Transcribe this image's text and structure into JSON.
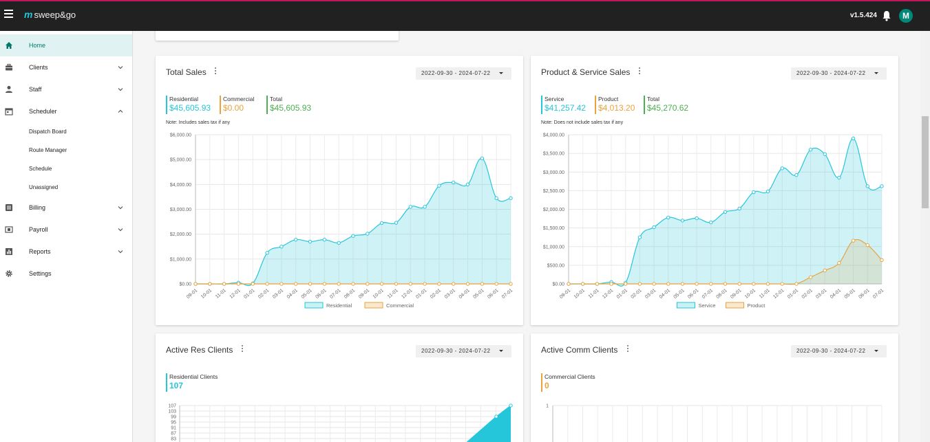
{
  "header": {
    "logo_mark": "m",
    "logo_text": "sweep&go",
    "version": "v1.5.424",
    "avatar_initial": "M"
  },
  "sidebar": {
    "items": [
      {
        "label": "Home",
        "icon": "home-icon",
        "active": true
      },
      {
        "label": "Clients",
        "icon": "briefcase-icon"
      },
      {
        "label": "Staff",
        "icon": "person-icon"
      },
      {
        "label": "Scheduler",
        "icon": "calendar-icon",
        "expanded": true
      },
      {
        "label": "Billing",
        "icon": "list-icon"
      },
      {
        "label": "Payroll",
        "icon": "payroll-icon"
      },
      {
        "label": "Reports",
        "icon": "bar-chart-icon"
      },
      {
        "label": "Settings",
        "icon": "gear-icon"
      }
    ],
    "scheduler_sub": [
      "Dispatch Board",
      "Route Manager",
      "Schedule",
      "Unassigned"
    ]
  },
  "colors": {
    "accent": "#26c6da",
    "orange": "#e8a33c",
    "green": "#4caf50",
    "teal": "#00897b"
  },
  "cards": {
    "total_sales": {
      "title": "Total Sales",
      "range": "2022-09-30 - 2024-07-22",
      "stats": [
        {
          "label": "Residential",
          "value": "$45,605.93",
          "color": "#26c6da"
        },
        {
          "label": "Commercial",
          "value": "$0.00",
          "color": "#e8a33c"
        },
        {
          "label": "Total",
          "value": "$45,605.93",
          "color": "#4caf50"
        }
      ],
      "note": "Note: Includes sales tax if any"
    },
    "product_service": {
      "title": "Product & Service Sales",
      "range": "2022-09-30 - 2024-07-22",
      "stats": [
        {
          "label": "Service",
          "value": "$41,257.42",
          "color": "#26c6da"
        },
        {
          "label": "Product",
          "value": "$4,013.20",
          "color": "#e8a33c"
        },
        {
          "label": "Total",
          "value": "$45,270.62",
          "color": "#4caf50"
        }
      ],
      "note": "Note: Does not include sales tax if any"
    },
    "active_res": {
      "title": "Active Res Clients",
      "range": "2022-09-30 - 2024-07-22",
      "stat": {
        "label": "Residential Clients",
        "value": "107",
        "color": "#26c6da"
      }
    },
    "active_comm": {
      "title": "Active Comm Clients",
      "range": "2022-09-30 - 2024-07-22",
      "stat": {
        "label": "Commercial Clients",
        "value": "0",
        "color": "#e8a33c"
      }
    }
  },
  "chart_data": [
    {
      "type": "area",
      "x": [
        "09-01",
        "10-01",
        "11-01",
        "12-01",
        "01-01",
        "02-01",
        "03-01",
        "04-01",
        "05-01",
        "06-01",
        "07-01",
        "08-01",
        "09-01",
        "10-01",
        "11-01",
        "12-01",
        "01-01",
        "02-01",
        "03-01",
        "04-01",
        "05-01",
        "06-01",
        "07-01"
      ],
      "ylim": [
        0,
        6000
      ],
      "yticks": [
        "$0.00",
        "$1,000.00",
        "$2,000.00",
        "$3,000.00",
        "$4,000.00",
        "$5,000.00",
        "$6,000.00"
      ],
      "series": [
        {
          "name": "Residential",
          "values": [
            0,
            0,
            0,
            50,
            20,
            1250,
            1500,
            1780,
            1700,
            1780,
            1650,
            1930,
            2020,
            2450,
            2460,
            3100,
            3100,
            3950,
            4080,
            4000,
            5050,
            3450,
            3450
          ],
          "color": "#26c6da"
        },
        {
          "name": "Commercial",
          "values": [
            0,
            0,
            0,
            0,
            0,
            0,
            0,
            0,
            0,
            0,
            0,
            0,
            0,
            0,
            0,
            0,
            0,
            0,
            0,
            0,
            0,
            0,
            0
          ],
          "color": "#e8a33c"
        }
      ],
      "legend": "bottom",
      "grid": true
    },
    {
      "type": "area",
      "x": [
        "09-01",
        "10-01",
        "11-01",
        "12-01",
        "01-01",
        "02-01",
        "03-01",
        "04-01",
        "05-01",
        "06-01",
        "07-01",
        "08-01",
        "09-01",
        "10-01",
        "11-01",
        "12-01",
        "01-01",
        "02-01",
        "03-01",
        "04-01",
        "05-01",
        "06-01",
        "07-01"
      ],
      "ylim": [
        0,
        4000
      ],
      "yticks": [
        "$0.00",
        "$500.00",
        "$1,000.00",
        "$1,500.00",
        "$2,000.00",
        "$2,500.00",
        "$3,000.00",
        "$3,500.00",
        "$4,000.00"
      ],
      "series": [
        {
          "name": "Service",
          "values": [
            0,
            0,
            0,
            50,
            30,
            1250,
            1520,
            1780,
            1700,
            1760,
            1650,
            1930,
            2020,
            2460,
            2480,
            3100,
            2920,
            3600,
            3480,
            2850,
            3900,
            2620,
            2620
          ],
          "color": "#26c6da"
        },
        {
          "name": "Product",
          "values": [
            0,
            0,
            0,
            0,
            0,
            0,
            0,
            0,
            0,
            0,
            0,
            0,
            0,
            0,
            0,
            0,
            0,
            180,
            360,
            560,
            1160,
            1040,
            640
          ],
          "color": "#e8a33c"
        }
      ],
      "legend": "bottom",
      "grid": true
    },
    {
      "type": "area",
      "ylim": [
        83,
        107
      ],
      "yticks": [
        "83",
        "87",
        "91",
        "95",
        "99",
        "103",
        "107"
      ],
      "series": [
        {
          "name": "Residential Clients",
          "color": "#26c6da"
        }
      ]
    },
    {
      "type": "area",
      "yticks": [
        "1"
      ],
      "series": [
        {
          "name": "Commercial Clients",
          "color": "#e8a33c"
        }
      ]
    }
  ]
}
